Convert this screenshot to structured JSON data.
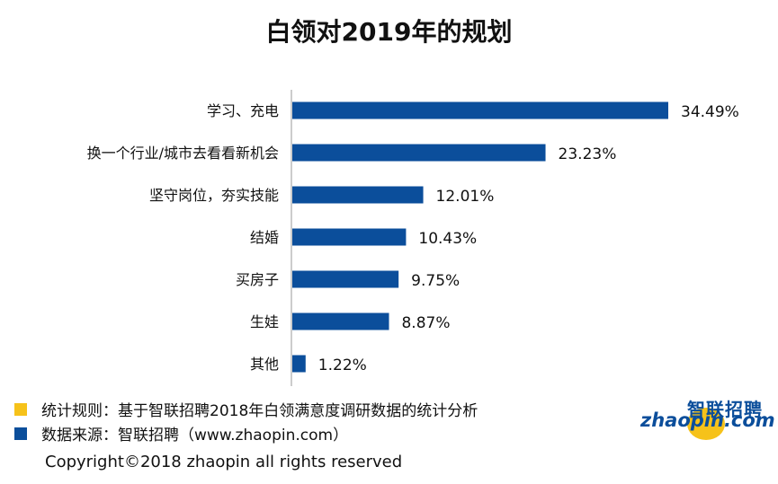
{
  "title": "白领对2019年的规划",
  "colors": {
    "bar": "#0b4e9b",
    "note_yellow": "#f6c21a",
    "note_blue": "#0b4e9b"
  },
  "chart_data": {
    "type": "bar",
    "orientation": "horizontal",
    "categories": [
      "学习、充电",
      "换一个行业/城市去看看新机会",
      "坚守岗位，夯实技能",
      "结婚",
      "买房子",
      "生娃",
      "其他"
    ],
    "values": [
      34.49,
      23.23,
      12.01,
      10.43,
      9.75,
      8.87,
      1.22
    ],
    "value_labels": [
      "34.49%",
      "23.23%",
      "12.01%",
      "10.43%",
      "9.75%",
      "8.87%",
      "1.22%"
    ],
    "unit": "%",
    "grid": false,
    "legend": "none"
  },
  "notes": [
    {
      "text": "统计规则：基于智联招聘2018年白领满意度调研数据的统计分析",
      "color": "yellow"
    },
    {
      "text": "数据来源：智联招聘（www.zhaopin.com）",
      "color": "blue"
    }
  ],
  "copyright": "Copyright©2018 zhaopin all rights reserved",
  "logo": {
    "cn": "智联招聘",
    "en": "zhaopin.com"
  }
}
